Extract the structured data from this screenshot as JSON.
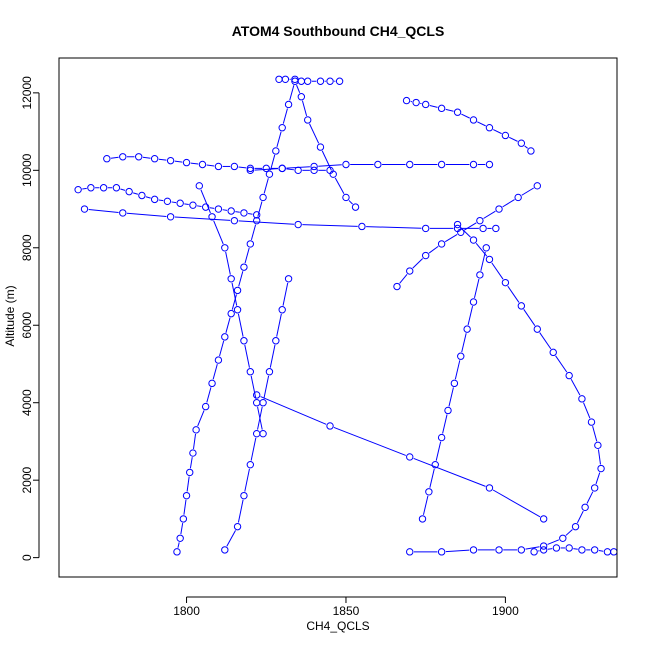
{
  "chart_data": {
    "type": "scatter",
    "title": "ATOM4 Southbound CH4_QCLS",
    "xlabel": "CH4_QCLS",
    "ylabel": "Altitude (m)",
    "xlim": [
      1760,
      1935
    ],
    "ylim": [
      -500,
      12900
    ],
    "xticks": [
      "1800",
      "1850",
      "1900"
    ],
    "yticks": [
      "0",
      "2000",
      "4000",
      "6000",
      "8000",
      "10000",
      "12000"
    ],
    "grid": false,
    "legend": "none",
    "style": "points connected by lines (type='b')",
    "color": "#0000ff",
    "series": [
      {
        "x": [
          1797,
          1798,
          1799,
          1800,
          1801,
          1802,
          1803,
          1806,
          1808,
          1810,
          1812,
          1814,
          1816,
          1818,
          1820,
          1822,
          1824,
          1826,
          1828,
          1830,
          1832,
          1834,
          1836,
          1838,
          1842,
          1846,
          1850,
          1853
        ],
        "y": [
          150,
          500,
          1000,
          1600,
          2200,
          2700,
          3300,
          3900,
          4500,
          5100,
          5700,
          6300,
          6900,
          7500,
          8100,
          8700,
          9300,
          9900,
          10500,
          11100,
          11700,
          12300,
          11900,
          11300,
          10600,
          9900,
          9300,
          9050
        ]
      },
      {
        "x": [
          1829,
          1831,
          1834,
          1836,
          1838,
          1842,
          1845,
          1848
        ],
        "y": [
          12350,
          12350,
          12350,
          12300,
          12300,
          12300,
          12300,
          12300
        ]
      },
      {
        "x": [
          1766,
          1770,
          1774,
          1778,
          1782,
          1786,
          1790,
          1794,
          1798,
          1802,
          1806,
          1810,
          1814,
          1818,
          1822
        ],
        "y": [
          9500,
          9550,
          9550,
          9550,
          9450,
          9350,
          9250,
          9200,
          9150,
          9100,
          9050,
          9000,
          8950,
          8900,
          8850
        ]
      },
      {
        "x": [
          1775,
          1780,
          1785,
          1790,
          1795,
          1800,
          1805,
          1810,
          1815,
          1820,
          1825,
          1830,
          1835,
          1840,
          1845
        ],
        "y": [
          10300,
          10350,
          10350,
          10300,
          10250,
          10200,
          10150,
          10100,
          10100,
          10050,
          10050,
          10050,
          10000,
          10000,
          10000
        ]
      },
      {
        "x": [
          1820,
          1830,
          1840,
          1850,
          1860,
          1870,
          1880,
          1890,
          1895
        ],
        "y": [
          10000,
          10050,
          10100,
          10150,
          10150,
          10150,
          10150,
          10150,
          10150
        ]
      },
      {
        "x": [
          1768,
          1780,
          1795,
          1815,
          1835,
          1855,
          1875,
          1885,
          1893,
          1897
        ],
        "y": [
          9000,
          8900,
          8800,
          8700,
          8600,
          8550,
          8500,
          8500,
          8500,
          8500
        ]
      },
      {
        "x": [
          1869,
          1872,
          1875,
          1880,
          1885,
          1890,
          1895,
          1900,
          1905,
          1908
        ],
        "y": [
          11800,
          11750,
          11700,
          11600,
          11500,
          11300,
          11100,
          10900,
          10700,
          10500
        ]
      },
      {
        "x": [
          1885,
          1890,
          1895,
          1900,
          1905,
          1910,
          1915,
          1920,
          1924,
          1927,
          1929,
          1930,
          1928,
          1925,
          1922,
          1918,
          1912,
          1905,
          1898,
          1890,
          1880,
          1870
        ],
        "y": [
          8600,
          8200,
          7700,
          7100,
          6500,
          5900,
          5300,
          4700,
          4100,
          3500,
          2900,
          2300,
          1800,
          1300,
          800,
          500,
          300,
          200,
          200,
          200,
          150,
          150
        ]
      },
      {
        "x": [
          1874,
          1876,
          1878,
          1880,
          1882,
          1884,
          1886,
          1888,
          1890,
          1892,
          1894
        ],
        "y": [
          1000,
          1700,
          2400,
          3100,
          3800,
          4500,
          5200,
          5900,
          6600,
          7300,
          8000
        ]
      },
      {
        "x": [
          1866,
          1870,
          1875,
          1880,
          1886,
          1892,
          1898,
          1904,
          1910
        ],
        "y": [
          7000,
          7400,
          7800,
          8100,
          8400,
          8700,
          9000,
          9300,
          9600
        ]
      },
      {
        "x": [
          1909,
          1912,
          1916,
          1920,
          1924,
          1928,
          1932,
          1934
        ],
        "y": [
          150,
          200,
          250,
          250,
          200,
          200,
          150,
          150
        ]
      },
      {
        "x": [
          1812,
          1816,
          1818,
          1820,
          1822,
          1824,
          1826,
          1828,
          1830,
          1832
        ],
        "y": [
          200,
          800,
          1600,
          2400,
          3200,
          4000,
          4800,
          5600,
          6400,
          7200
        ]
      },
      {
        "x": [
          1822,
          1845,
          1870,
          1895,
          1912
        ],
        "y": [
          4200,
          3400,
          2600,
          1800,
          1000
        ]
      },
      {
        "x": [
          1804,
          1808,
          1812,
          1814,
          1816,
          1818,
          1820,
          1822,
          1824
        ],
        "y": [
          9600,
          8800,
          8000,
          7200,
          6400,
          5600,
          4800,
          4000,
          3200
        ]
      }
    ]
  }
}
